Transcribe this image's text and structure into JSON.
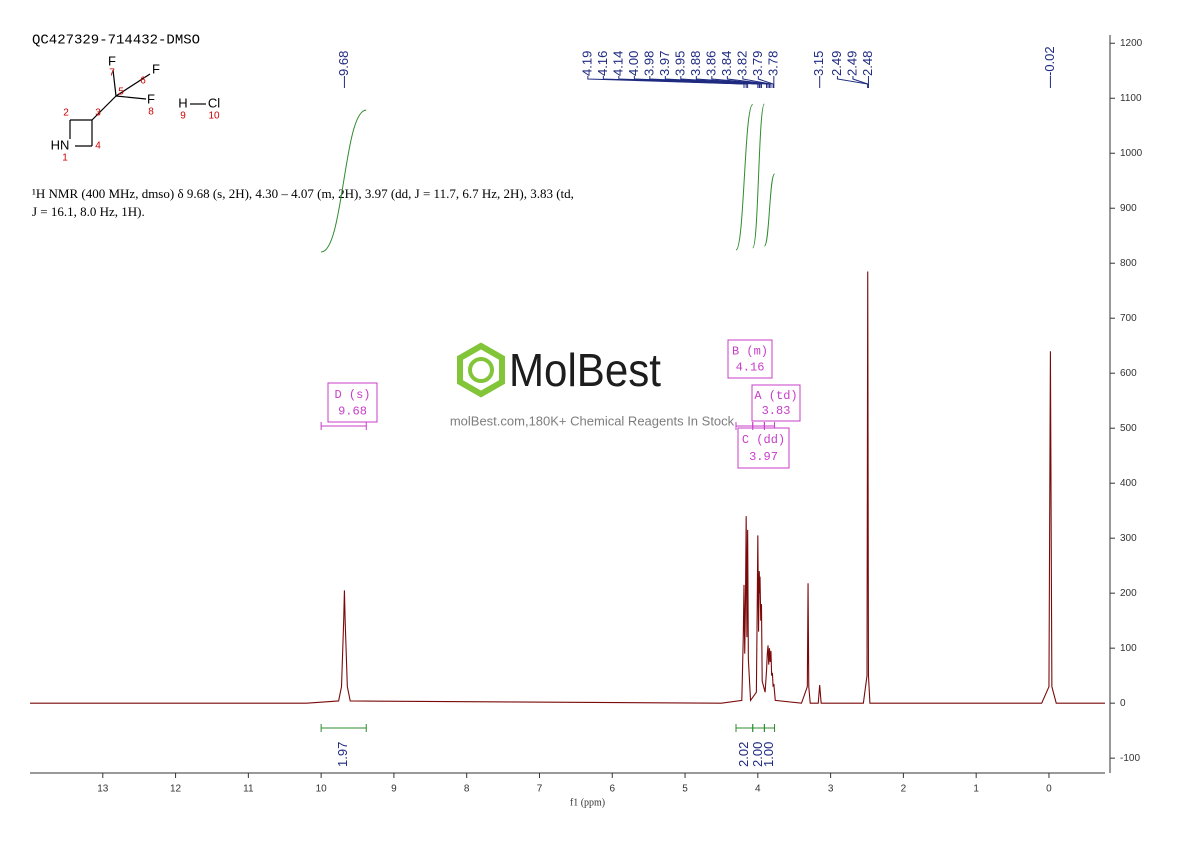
{
  "chart_data": {
    "type": "nmr",
    "title": "QC427329-714432-DMSO",
    "description": [
      "¹H NMR (400 MHz, dmso) δ 9.68 (s, 2H), 4.30 – 4.07 (m, 2H), 3.97 (dd, J = 11.7, 6.7 Hz, 2H), 3.83 (td,",
      "J = 16.1, 8.0 Hz, 1H)."
    ],
    "x_label": "f1 (ppm)",
    "xlim": [
      14.0,
      -0.77
    ],
    "xticks": [
      13,
      12,
      11,
      10,
      9,
      8,
      7,
      6,
      5,
      4,
      3,
      2,
      1,
      0
    ],
    "ylim": [
      -127,
      1215
    ],
    "yticks": [
      -100,
      0,
      100,
      200,
      300,
      400,
      500,
      600,
      700,
      800,
      900,
      1000,
      1100,
      1200
    ],
    "series": [
      {
        "color": "#7a0a0a",
        "x": [
          14.0,
          10.2,
          9.76,
          9.72,
          9.69,
          9.68,
          9.67,
          9.64,
          9.6,
          4.5,
          4.22,
          4.2,
          4.19,
          4.18,
          4.17,
          4.16,
          4.15,
          4.14,
          4.13,
          4.1,
          4.02,
          4.01,
          4.0,
          3.99,
          3.98,
          3.975,
          3.97,
          3.96,
          3.95,
          3.94,
          3.9,
          3.88,
          3.87,
          3.86,
          3.85,
          3.84,
          3.83,
          3.82,
          3.81,
          3.8,
          3.79,
          3.78,
          3.76,
          3.4,
          3.32,
          3.31,
          3.3,
          3.28,
          3.17,
          3.15,
          3.13,
          2.55,
          2.5,
          2.49,
          2.48,
          2.46,
          0.1,
          0.0,
          -0.02,
          -0.04,
          -0.1,
          -0.77
        ],
        "values": [
          0,
          0,
          4,
          30,
          150,
          205,
          150,
          30,
          4,
          0,
          5,
          120,
          215,
          90,
          180,
          340,
          120,
          315,
          80,
          5,
          20,
          150,
          305,
          130,
          240,
          200,
          230,
          150,
          180,
          40,
          20,
          60,
          90,
          105,
          70,
          100,
          75,
          95,
          50,
          55,
          30,
          35,
          5,
          0,
          30,
          218,
          30,
          0,
          0,
          33,
          0,
          0,
          50,
          785,
          50,
          0,
          0,
          30,
          640,
          30,
          0,
          0
        ]
      }
    ],
    "peak_labels": [
      9.68,
      4.19,
      4.16,
      4.14,
      {
        "value": 4.0,
        "label": "4.00"
      },
      3.98,
      3.97,
      3.95,
      3.88,
      3.86,
      3.84,
      3.82,
      3.79,
      3.78,
      3.15,
      2.49,
      2.49,
      2.48,
      -0.02
    ],
    "peak_label_color": "#1f2a80",
    "integrals": [
      {
        "from": 10.0,
        "to": 9.38,
        "value": 1.97
      },
      {
        "from": 4.3,
        "to": 4.07,
        "value": 2.02
      },
      {
        "from": 4.07,
        "to": 3.91,
        "value": {
          "value": 2.0,
          "label": "2.00"
        }
      },
      {
        "from": 3.91,
        "to": 3.77,
        "value": {
          "value": 1.0,
          "label": "1.00"
        }
      }
    ],
    "integral_color": "#2e8b2e",
    "multiplets": [
      {
        "label": "D (s)",
        "shift": 9.68,
        "range": [
          10.0,
          9.38
        ]
      },
      {
        "label": "B (m)",
        "shift": 4.16,
        "range": [
          4.3,
          4.07
        ]
      },
      {
        "label": "A (td)",
        "shift": 3.83,
        "range": [
          3.91,
          3.77
        ]
      },
      {
        "label": "C (dd)",
        "shift": 3.97,
        "range": [
          4.07,
          3.91
        ]
      }
    ],
    "multiplet_color": "#c83cc8"
  },
  "structure": {
    "atoms": [
      {
        "symbol": "F",
        "number": "7"
      },
      {
        "symbol": "F",
        "number": "6"
      },
      {
        "number": "5"
      },
      {
        "symbol": "F",
        "number": "8"
      },
      {
        "number": "3"
      },
      {
        "number": "2"
      },
      {
        "symbol": "HN",
        "number": "1"
      },
      {
        "number": "4"
      },
      {
        "symbol": "H",
        "number": "9"
      },
      {
        "symbol": "Cl",
        "number": "10"
      }
    ]
  },
  "watermark": {
    "brand": "MolBest",
    "tagline": "molBest.com,180K+ Chemical Reagents In Stock"
  }
}
